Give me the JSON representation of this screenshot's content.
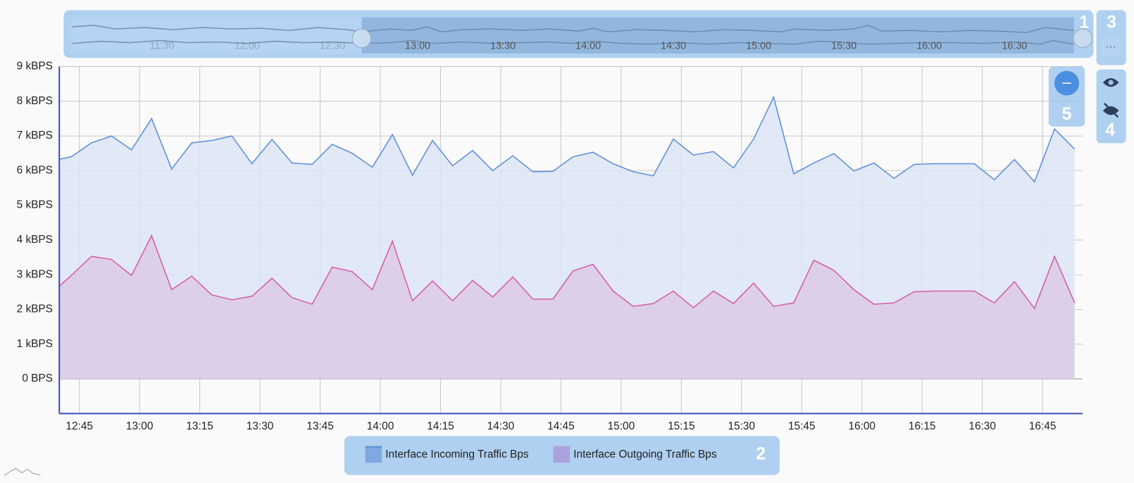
{
  "chart_data": {
    "type": "area",
    "x": [
      "12:40",
      "12:43",
      "12:48",
      "12:53",
      "12:58",
      "13:03",
      "13:08",
      "13:13",
      "13:18",
      "13:23",
      "13:28",
      "13:33",
      "13:38",
      "13:43",
      "13:48",
      "13:53",
      "13:58",
      "14:03",
      "14:08",
      "14:13",
      "14:18",
      "14:23",
      "14:28",
      "14:33",
      "14:38",
      "14:43",
      "14:48",
      "14:53",
      "14:58",
      "15:03",
      "15:08",
      "15:13",
      "15:18",
      "15:23",
      "15:28",
      "15:33",
      "15:38",
      "15:43",
      "15:48",
      "15:53",
      "15:58",
      "16:03",
      "16:08",
      "16:13",
      "16:18",
      "16:23",
      "16:28",
      "16:33",
      "16:38",
      "16:43",
      "16:48",
      "16:53"
    ],
    "series": [
      {
        "name": "Interface Incoming Traffic Bps",
        "color": "#5b8ed8",
        "fill": "#dce5f5",
        "values": [
          6330,
          6400,
          6800,
          7000,
          6600,
          7500,
          6050,
          6800,
          6870,
          7000,
          6200,
          6900,
          6220,
          6180,
          6760,
          6500,
          6100,
          7040,
          5870,
          6870,
          6140,
          6580,
          6000,
          6430,
          5970,
          5980,
          6400,
          6530,
          6200,
          5970,
          5850,
          6910,
          6450,
          6550,
          6080,
          6910,
          8120,
          5910,
          6220,
          6490,
          5990,
          6220,
          5780,
          6180,
          6200,
          6200,
          6200,
          5740,
          6320,
          5680,
          7200,
          6620
        ]
      },
      {
        "name": "Interface Outgoing Traffic Bps",
        "color": "#d65ba8",
        "fill": "#dccae5",
        "legend_color": "#a9a2de",
        "values": [
          2670,
          2980,
          3530,
          3440,
          2980,
          4130,
          2570,
          2960,
          2420,
          2280,
          2380,
          2900,
          2340,
          2150,
          3220,
          3090,
          2570,
          3970,
          2250,
          2820,
          2250,
          2840,
          2360,
          2940,
          2300,
          2300,
          3110,
          3300,
          2530,
          2090,
          2170,
          2530,
          2050,
          2530,
          2170,
          2760,
          2090,
          2190,
          3420,
          3130,
          2570,
          2150,
          2190,
          2510,
          2530,
          2530,
          2530,
          2190,
          2800,
          2030,
          3530,
          2190
        ]
      }
    ],
    "xlim": [
      "12:40",
      "16:55"
    ],
    "xticks": [
      "12:45",
      "13:00",
      "13:15",
      "13:30",
      "13:45",
      "14:00",
      "14:15",
      "14:30",
      "14:45",
      "15:00",
      "15:15",
      "15:30",
      "15:45",
      "16:00",
      "16:15",
      "16:30",
      "16:45"
    ],
    "ylim": [
      -1000,
      9000
    ],
    "yticks": [
      {
        "value": 0,
        "label": "0 BPS"
      },
      {
        "value": 1000,
        "label": "1 kBPS"
      },
      {
        "value": 2000,
        "label": "2 kBPS"
      },
      {
        "value": 3000,
        "label": "3 kBPS"
      },
      {
        "value": 4000,
        "label": "4 kBPS"
      },
      {
        "value": 5000,
        "label": "5 kBPS"
      },
      {
        "value": 6000,
        "label": "6 kBPS"
      },
      {
        "value": 7000,
        "label": "7 kBPS"
      },
      {
        "value": 8000,
        "label": "8 kBPS"
      },
      {
        "value": 9000,
        "label": "9 kBPS"
      }
    ],
    "grid": true,
    "navigator": {
      "xlim": [
        "11:00",
        "16:55"
      ],
      "labels": [
        "11:30",
        "12:00",
        "12:30",
        "13:00",
        "13:30",
        "14:00",
        "14:30",
        "15:00",
        "15:30",
        "16:00",
        "16:30"
      ]
    },
    "overlay_labels": [
      "1",
      "2",
      "3",
      "4",
      "5"
    ]
  }
}
